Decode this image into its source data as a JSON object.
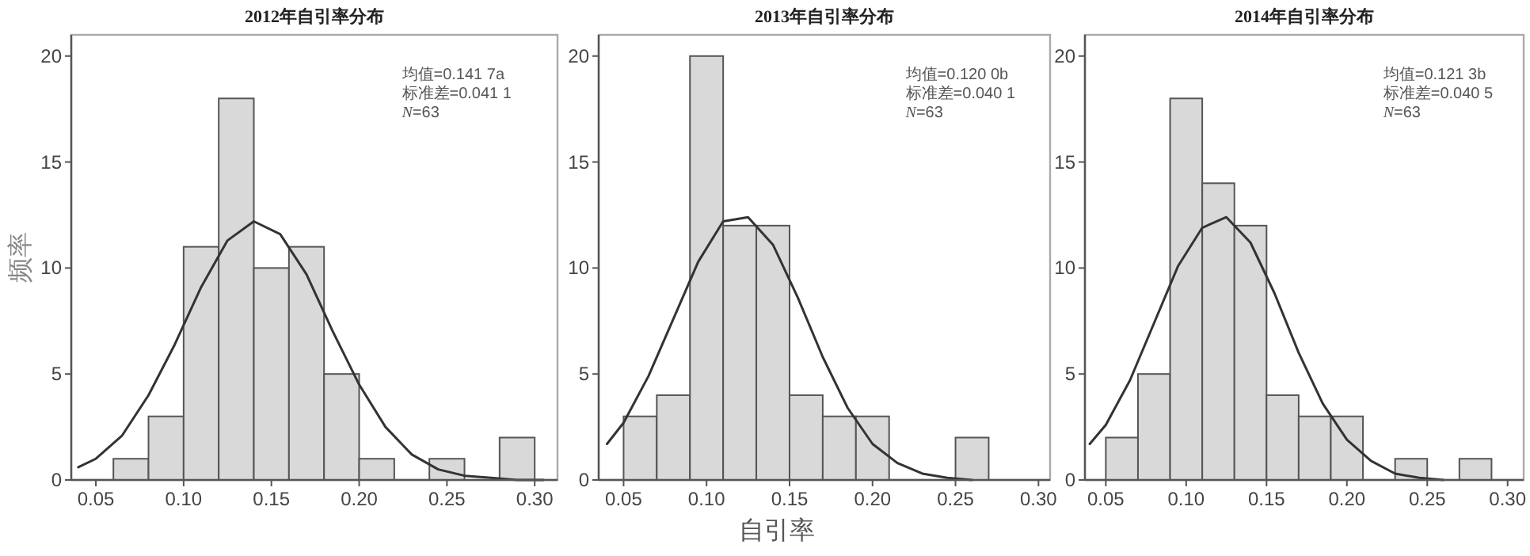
{
  "chart_data": [
    {
      "type": "histogram",
      "title": "2012年自引率分布",
      "ylabel": "频率",
      "annotations": [
        "均值=0.141 7a",
        "标准差=0.041 1",
        "*N*=63"
      ],
      "xlim": [
        0.036,
        0.313
      ],
      "ylim": [
        0,
        21
      ],
      "xticks": [
        0.05,
        {
          "value": 0.1,
          "label": "0.10"
        },
        0.15,
        {
          "value": 0.2,
          "label": "0.20"
        },
        0.25,
        {
          "value": 0.3,
          "label": "0.30"
        }
      ],
      "yticks": [
        0,
        5,
        10,
        15,
        20
      ],
      "series": [
        {
          "color": "#d9d9d9",
          "bins": [
            0.06,
            0.08,
            0.1,
            0.12,
            0.14,
            0.16,
            0.18,
            0.2,
            0.22,
            0.24,
            0.26,
            0.28,
            0.3
          ],
          "values": [
            1,
            3,
            11,
            18,
            10,
            11,
            5,
            1,
            0,
            1,
            0,
            2
          ]
        },
        {
          "type": "line",
          "color": "#333333",
          "x": [
            0.04,
            0.05,
            0.065,
            0.08,
            0.095,
            0.11,
            0.125,
            0.14,
            0.155,
            0.17,
            0.185,
            0.2,
            0.215,
            0.23,
            0.245,
            0.26,
            0.275,
            0.29,
            0.305
          ],
          "values": [
            0.6,
            1.0,
            2.1,
            4.0,
            6.4,
            9.1,
            11.3,
            12.2,
            11.6,
            9.7,
            7.0,
            4.5,
            2.5,
            1.2,
            0.5,
            0.2,
            0.1,
            0.0,
            0.0
          ]
        }
      ]
    },
    {
      "type": "histogram",
      "title": "2013年自引率分布",
      "xlabel": "自引率",
      "annotations": [
        "均值=0.120 0b",
        "标准差=0.040 1",
        "*N*=63"
      ],
      "xlim": [
        0.035,
        0.307
      ],
      "ylim": [
        0,
        21
      ],
      "xticks": [
        0.05,
        {
          "value": 0.1,
          "label": "0.10"
        },
        0.15,
        {
          "value": 0.2,
          "label": "0.20"
        },
        0.25,
        {
          "value": 0.3,
          "label": "0.30"
        }
      ],
      "yticks": [
        0,
        5,
        10,
        15,
        20
      ],
      "series": [
        {
          "color": "#d9d9d9",
          "bins": [
            0.05,
            0.07,
            0.09,
            0.11,
            0.13,
            0.15,
            0.17,
            0.19,
            0.21,
            0.23,
            0.25,
            0.27
          ],
          "values": [
            3,
            4,
            20,
            12,
            12,
            4,
            3,
            3,
            0,
            0,
            2
          ]
        },
        {
          "type": "line",
          "color": "#333333",
          "x": [
            0.04,
            0.05,
            0.065,
            0.08,
            0.095,
            0.11,
            0.125,
            0.14,
            0.155,
            0.17,
            0.185,
            0.2,
            0.215,
            0.23,
            0.245,
            0.26
          ],
          "values": [
            1.7,
            2.7,
            4.9,
            7.6,
            10.3,
            12.2,
            12.4,
            11.1,
            8.6,
            5.8,
            3.4,
            1.7,
            0.8,
            0.3,
            0.1,
            0.0
          ]
        }
      ]
    },
    {
      "type": "histogram",
      "title": "2014年自引率分布",
      "annotations": [
        "均值=0.121 3b",
        "标准差=0.040 5",
        "*N*=63"
      ],
      "xlim": [
        0.037,
        0.31
      ],
      "ylim": [
        0,
        21
      ],
      "xticks": [
        0.05,
        {
          "value": 0.1,
          "label": "0.10"
        },
        0.15,
        {
          "value": 0.2,
          "label": "0.20"
        },
        0.25,
        {
          "value": 0.3,
          "label": "0.30"
        }
      ],
      "yticks": [
        0,
        5,
        10,
        15,
        20
      ],
      "series": [
        {
          "color": "#d9d9d9",
          "bins": [
            0.05,
            0.07,
            0.09,
            0.11,
            0.13,
            0.15,
            0.17,
            0.19,
            0.21,
            0.23,
            0.25,
            0.27,
            0.29
          ],
          "values": [
            2,
            5,
            18,
            14,
            12,
            4,
            3,
            3,
            0,
            1,
            0,
            1
          ]
        },
        {
          "type": "line",
          "color": "#333333",
          "x": [
            0.04,
            0.05,
            0.065,
            0.08,
            0.095,
            0.11,
            0.125,
            0.14,
            0.155,
            0.17,
            0.185,
            0.2,
            0.215,
            0.23,
            0.245,
            0.26
          ],
          "values": [
            1.7,
            2.6,
            4.7,
            7.4,
            10.1,
            11.9,
            12.4,
            11.2,
            8.8,
            6.0,
            3.6,
            1.9,
            0.9,
            0.3,
            0.1,
            0.0
          ]
        }
      ]
    }
  ]
}
